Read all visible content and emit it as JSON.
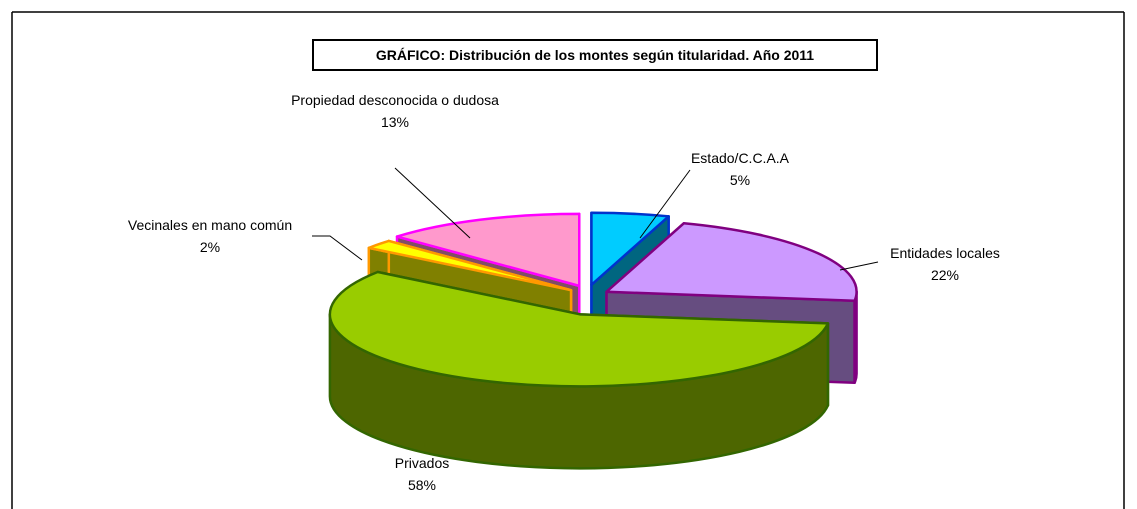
{
  "chart_data": {
    "type": "pie",
    "title": "GRÁFICO: Distribución de los montes según titularidad. Año 2011",
    "categories": [
      "Estado/C.C.A.A",
      "Entidades locales",
      "Privados",
      "Vecinales en mano común",
      "Propiedad desconocida o dudosa"
    ],
    "values": [
      5,
      22,
      58,
      2,
      13
    ],
    "value_labels": [
      "5%",
      "22%",
      "58%",
      "2%",
      "13%"
    ],
    "colors": [
      "#00ccff",
      "#cc99ff",
      "#99cc00",
      "#ffff00",
      "#ff99cc"
    ],
    "border_colors": [
      "#0033cc",
      "#800080",
      "#336600",
      "#ff9900",
      "#ff00ff"
    ]
  }
}
